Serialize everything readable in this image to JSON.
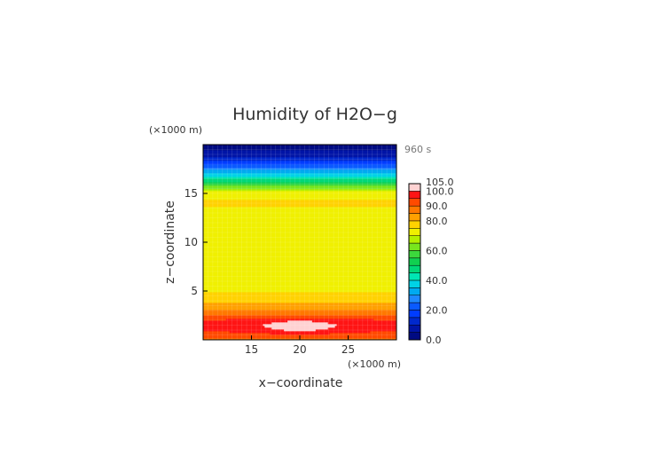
{
  "chart_data": {
    "type": "heatmap",
    "title": "Humidity of H2O−g",
    "xlabel": "x−coordinate",
    "ylabel": "z−coordinate",
    "x_unit": "(×1000 m)",
    "y_unit": "(×1000 m)",
    "time_label": "960 s",
    "xlim": [
      10,
      30
    ],
    "ylim": [
      0,
      20
    ],
    "x_ticks": [
      15,
      20,
      25
    ],
    "y_ticks": [
      5,
      10,
      15
    ],
    "x_tick_labels": [
      "15",
      "20",
      "25"
    ],
    "y_tick_labels": [
      "5",
      "10",
      "15"
    ],
    "colorbar": {
      "min": 0,
      "max": 105,
      "levels": [
        0,
        5,
        10,
        15,
        20,
        25,
        30,
        35,
        40,
        45,
        50,
        55,
        60,
        65,
        70,
        75,
        80,
        85,
        90,
        95,
        100,
        105
      ],
      "tick_values": [
        0,
        20,
        40,
        60,
        80,
        90,
        100,
        105
      ],
      "tick_labels": [
        "0.0",
        "20.0",
        "40.0",
        "60.0",
        "80.0",
        "90.0",
        "100.0",
        "105.0"
      ]
    },
    "humidity_profile": {
      "z": [
        0,
        0.5,
        1,
        1.5,
        2,
        2.5,
        3,
        3.5,
        4,
        4.5,
        5,
        6,
        8,
        10,
        12,
        13,
        14,
        15,
        15.5,
        16,
        16.5,
        17,
        17.5,
        18,
        18.5,
        19,
        19.5,
        20
      ],
      "humidity": [
        88,
        92,
        95,
        97,
        95,
        90,
        85,
        82,
        79,
        77,
        74,
        72,
        70,
        70,
        70,
        73,
        76,
        73,
        66,
        55,
        45,
        36,
        28,
        20,
        13,
        8,
        4,
        2
      ]
    },
    "maximum": {
      "x": 20,
      "z": 1.4,
      "value": 102
    }
  }
}
